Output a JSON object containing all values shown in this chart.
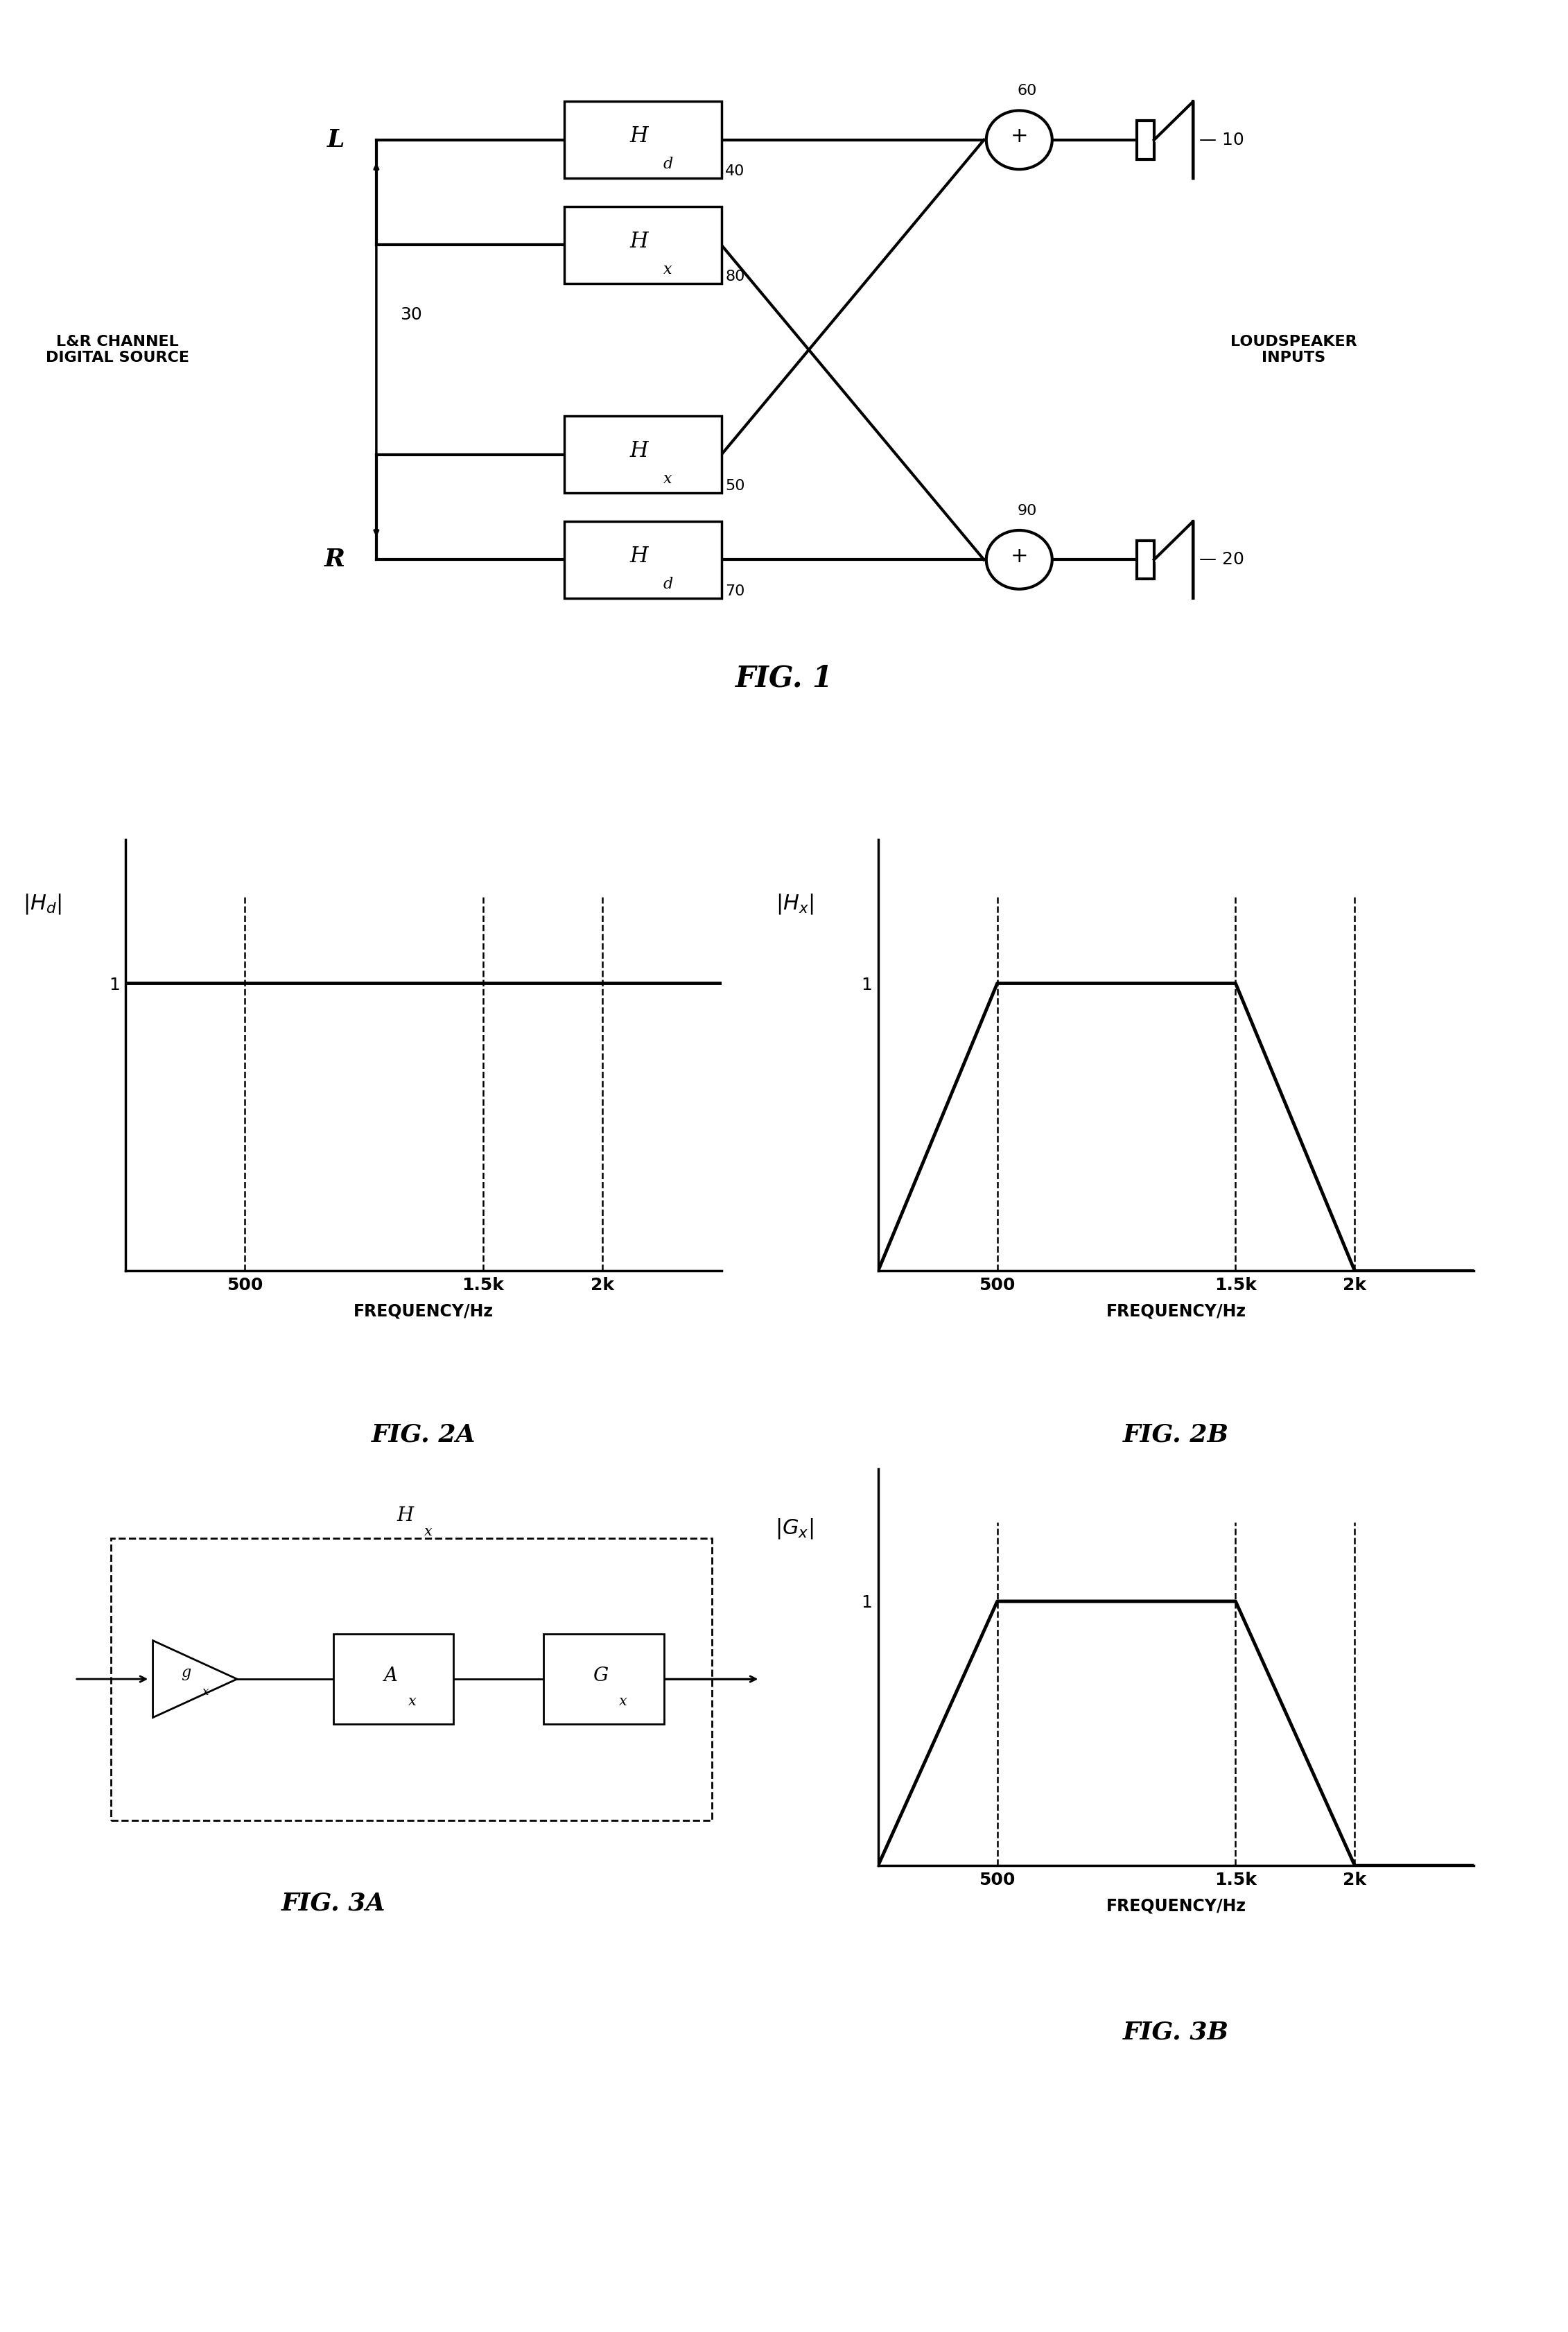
{
  "bg_color": "#ffffff",
  "fig_width": 22.62,
  "fig_height": 33.64,
  "fig1": {
    "title": "FIG. 1",
    "L_label": "L",
    "R_label": "R",
    "source_label": "L&R CHANNEL\nDIGITAL SOURCE",
    "loudspeaker_label": "LOUDSPEAKER\nINPUTS",
    "num_40": "40",
    "num_80": "80",
    "num_50": "50",
    "num_70": "70",
    "num_60": "60",
    "num_90": "90",
    "num_10": "10",
    "num_20": "20",
    "num_30": "30"
  },
  "fig2a": {
    "title": "FIG. 2A",
    "ylabel": "|H_d|",
    "xlabel": "FREQUENCY/Hz",
    "xtick_labels": [
      "500",
      "1.5k",
      "2k"
    ],
    "ytick": "1"
  },
  "fig2b": {
    "title": "FIG. 2B",
    "ylabel": "|H_x|",
    "xlabel": "FREQUENCY/Hz",
    "xtick_labels": [
      "500",
      "1.5k",
      "2k"
    ],
    "ytick": "1"
  },
  "fig3a": {
    "title": "FIG. 3A",
    "hx_label": "H_x",
    "gx_label": "g_x",
    "ax_label": "A_x",
    "gx_block_label": "G_x"
  },
  "fig3b": {
    "title": "FIG. 3B",
    "ylabel": "|G_x|",
    "xlabel": "FREQUENCY/Hz",
    "xtick_labels": [
      "500",
      "1.5k",
      "2k"
    ],
    "ytick": "1"
  }
}
